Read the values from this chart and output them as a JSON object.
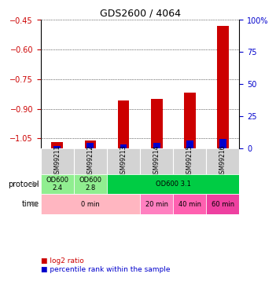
{
  "title": "GDS2600 / 4064",
  "samples": [
    "GSM99211",
    "GSM99212",
    "GSM99213",
    "GSM99214",
    "GSM99215",
    "GSM99216"
  ],
  "log2_ratio": [
    -1.07,
    -1.06,
    -0.86,
    -0.85,
    -0.82,
    -0.48
  ],
  "percentile_rank": [
    2,
    4,
    3,
    4,
    6,
    7
  ],
  "percentile_scale": 100,
  "ylim_left": [
    -1.1,
    -0.45
  ],
  "ylim_right": [
    0,
    100
  ],
  "yticks_left": [
    -1.05,
    -0.9,
    -0.75,
    -0.6,
    -0.45
  ],
  "yticks_right": [
    0,
    25,
    50,
    75,
    100
  ],
  "protocol_row": [
    {
      "label": "OD600\n2.4",
      "span": [
        0,
        1
      ],
      "color": "#90ee90"
    },
    {
      "label": "OD600\n2.8",
      "span": [
        1,
        2
      ],
      "color": "#90ee90"
    },
    {
      "label": "OD600 3.1",
      "span": [
        2,
        6
      ],
      "color": "#00cc44"
    }
  ],
  "time_row": [
    {
      "label": "0 min",
      "span": [
        0,
        3
      ],
      "color": "#ffb6c1"
    },
    {
      "label": "20 min",
      "span": [
        3,
        4
      ],
      "color": "#ff80c0"
    },
    {
      "label": "40 min",
      "span": [
        4,
        5
      ],
      "color": "#ff60b0"
    },
    {
      "label": "60 min",
      "span": [
        5,
        6
      ],
      "color": "#ee40a0"
    }
  ],
  "bar_color_red": "#cc0000",
  "bar_color_blue": "#0000cc",
  "bar_width": 0.35,
  "percentile_bar_width": 0.35,
  "legend_red_label": "log2 ratio",
  "legend_blue_label": "percentile rank within the sample",
  "left_axis_color": "#cc0000",
  "right_axis_color": "#0000cc",
  "grid_color": "black",
  "background_color": "white",
  "sample_row_color": "#d3d3d3"
}
